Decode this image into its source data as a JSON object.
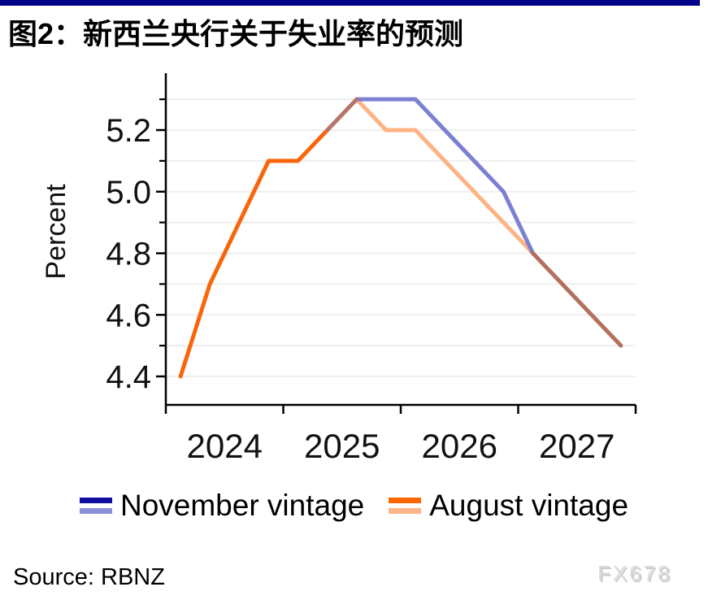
{
  "page": {
    "top_bar_color": "#00008B",
    "background": "#ffffff"
  },
  "header": {
    "title": "图2：新西兰央行关于失业率的预测"
  },
  "chart_data": {
    "type": "line",
    "title": "图2：新西兰央行关于失业率的预测",
    "xlabel": "",
    "ylabel": "Percent",
    "unit": "percent",
    "categories": [
      "2024Q1",
      "2024Q2",
      "2024Q3",
      "2024Q4",
      "2025Q1",
      "2025Q2",
      "2025Q3",
      "2025Q4",
      "2026Q1",
      "2026Q2",
      "2026Q3",
      "2026Q4",
      "2027Q1",
      "2027Q2",
      "2027Q3",
      "2027Q4"
    ],
    "x_year_labels": [
      "2024",
      "2025",
      "2026",
      "2027"
    ],
    "y_major_ticks": [
      4.4,
      4.6,
      4.8,
      5.0,
      5.2
    ],
    "y_minor_ticks": [
      4.5,
      4.7,
      4.9,
      5.1,
      5.3
    ],
    "ylim": [
      4.32,
      5.38
    ],
    "grid": "horizontal",
    "gridline_color": "#efefef",
    "axis_color": "#000000",
    "tick_label_color": "#111111",
    "legend_position": "bottom",
    "series": [
      {
        "name": "November vintage",
        "history_color": "#0D0DA0",
        "forecast_color": "#7B80D2",
        "values": [
          null,
          null,
          null,
          null,
          null,
          5.2,
          5.3,
          5.3,
          5.3,
          5.2,
          5.1,
          5.0,
          4.8,
          4.7,
          4.6,
          4.5
        ]
      },
      {
        "name": "August vintage",
        "history_color": "#F9660A",
        "forecast_color": "#FDB384",
        "values": [
          4.4,
          4.7,
          4.9,
          5.1,
          5.1,
          5.2,
          5.3,
          5.2,
          5.2,
          5.1,
          5.0,
          4.9,
          4.8,
          4.7,
          4.6,
          4.5
        ]
      }
    ],
    "render_segments": [
      {
        "series": "August vintage",
        "part": "history",
        "color": "#F9660A",
        "points": [
          [
            0,
            4.4
          ],
          [
            1,
            4.7
          ],
          [
            2,
            4.9
          ],
          [
            3,
            5.1
          ],
          [
            4,
            5.1
          ],
          [
            5,
            5.2
          ]
        ]
      },
      {
        "series": "August vintage",
        "part": "forecast",
        "color": "#FDB384",
        "points": [
          [
            6,
            5.3
          ],
          [
            7,
            5.2
          ],
          [
            8,
            5.2
          ],
          [
            9,
            5.1
          ],
          [
            10,
            5.0
          ],
          [
            11,
            4.9
          ],
          [
            12,
            4.8
          ]
        ]
      },
      {
        "series": "November vintage",
        "part": "forecast",
        "color": "#7B80D2",
        "points": [
          [
            6,
            5.3
          ],
          [
            7,
            5.3
          ],
          [
            8,
            5.3
          ],
          [
            9,
            5.2
          ],
          [
            10,
            5.1
          ],
          [
            11,
            5.0
          ],
          [
            12,
            4.8
          ]
        ]
      },
      {
        "series": "both",
        "part": "overlap-rise",
        "color": "#B5756A",
        "points": [
          [
            5,
            5.2
          ],
          [
            6,
            5.3
          ]
        ]
      },
      {
        "series": "both",
        "part": "overlap-tail",
        "color": "#B4705F",
        "points": [
          [
            12,
            4.8
          ],
          [
            13,
            4.7
          ],
          [
            14,
            4.6
          ],
          [
            15,
            4.5
          ]
        ]
      }
    ]
  },
  "legend": {
    "items": [
      {
        "label": "November vintage",
        "colors": [
          "#0D0DA0",
          "#8A8FD8"
        ]
      },
      {
        "label": "August vintage",
        "colors": [
          "#FD6500",
          "#FDB488"
        ]
      }
    ]
  },
  "footer": {
    "source": "Source: RBNZ",
    "watermark": "FX678"
  }
}
